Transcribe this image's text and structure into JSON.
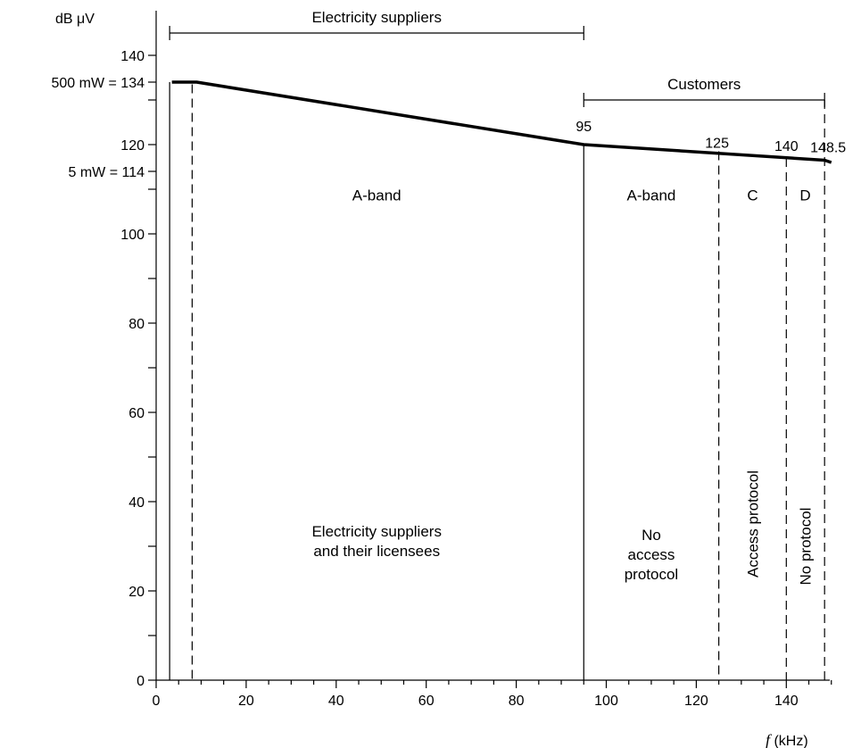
{
  "chart_data": {
    "type": "line",
    "title": "",
    "ylabel": "dB μV",
    "xlabel_italic": "f",
    "xlabel_unit": " (kHz)",
    "xlim": [
      0,
      150
    ],
    "ylim": [
      0,
      150
    ],
    "x_ticks": [
      0,
      20,
      40,
      60,
      80,
      100,
      120,
      140
    ],
    "y_ticks": [
      0,
      20,
      40,
      60,
      80,
      100,
      120,
      140
    ],
    "y_special_labels": [
      {
        "y": 134,
        "text": "500 mW = 134"
      },
      {
        "y": 114,
        "text": "5 mW = 114"
      }
    ],
    "series": [
      {
        "x": [
          3.5,
          9,
          95,
          148.5,
          150
        ],
        "y": [
          134,
          134,
          120,
          116.5,
          116
        ]
      }
    ],
    "boundaries": [
      {
        "x": 3,
        "style": "solid"
      },
      {
        "x": 8,
        "style": "dashed"
      },
      {
        "x": 95,
        "style": "solid"
      },
      {
        "x": 125,
        "style": "dashed"
      },
      {
        "x": 140,
        "style": "dashed"
      },
      {
        "x": 148.5,
        "style": "dashed"
      }
    ],
    "point_labels": [
      {
        "x": 95,
        "y": 120,
        "text": "95"
      },
      {
        "x": 125,
        "y": 117.3,
        "text": "125"
      },
      {
        "x": 140,
        "y": 116.6,
        "text": "140"
      },
      {
        "x": 148.5,
        "y": 116.3,
        "text": "148.5"
      }
    ],
    "brackets": [
      {
        "x1": 3,
        "x2": 95,
        "y": 145,
        "text": "Electricity suppliers"
      },
      {
        "x1": 95,
        "x2": 148.5,
        "y": 130,
        "text": "Customers"
      }
    ],
    "band_labels": [
      {
        "x": 49,
        "y": 107.5,
        "text": "A-band"
      },
      {
        "x": 110,
        "y": 107.5,
        "text": "A-band"
      },
      {
        "x": 132.5,
        "y": 107.5,
        "text": "C"
      },
      {
        "x": 144.2,
        "y": 107.5,
        "text": "D"
      }
    ],
    "region_descriptions": [
      {
        "x": 49,
        "y": 30,
        "lines": [
          "Electricity suppliers",
          "and their licensees"
        ]
      },
      {
        "x": 110,
        "y": 27,
        "lines": [
          "No",
          "access",
          "protocol"
        ]
      }
    ],
    "rotated_labels": [
      {
        "x": 132.5,
        "y": 35,
        "text": "Access protocol"
      },
      {
        "x": 144.2,
        "y": 30,
        "text": "No protocol"
      }
    ]
  }
}
